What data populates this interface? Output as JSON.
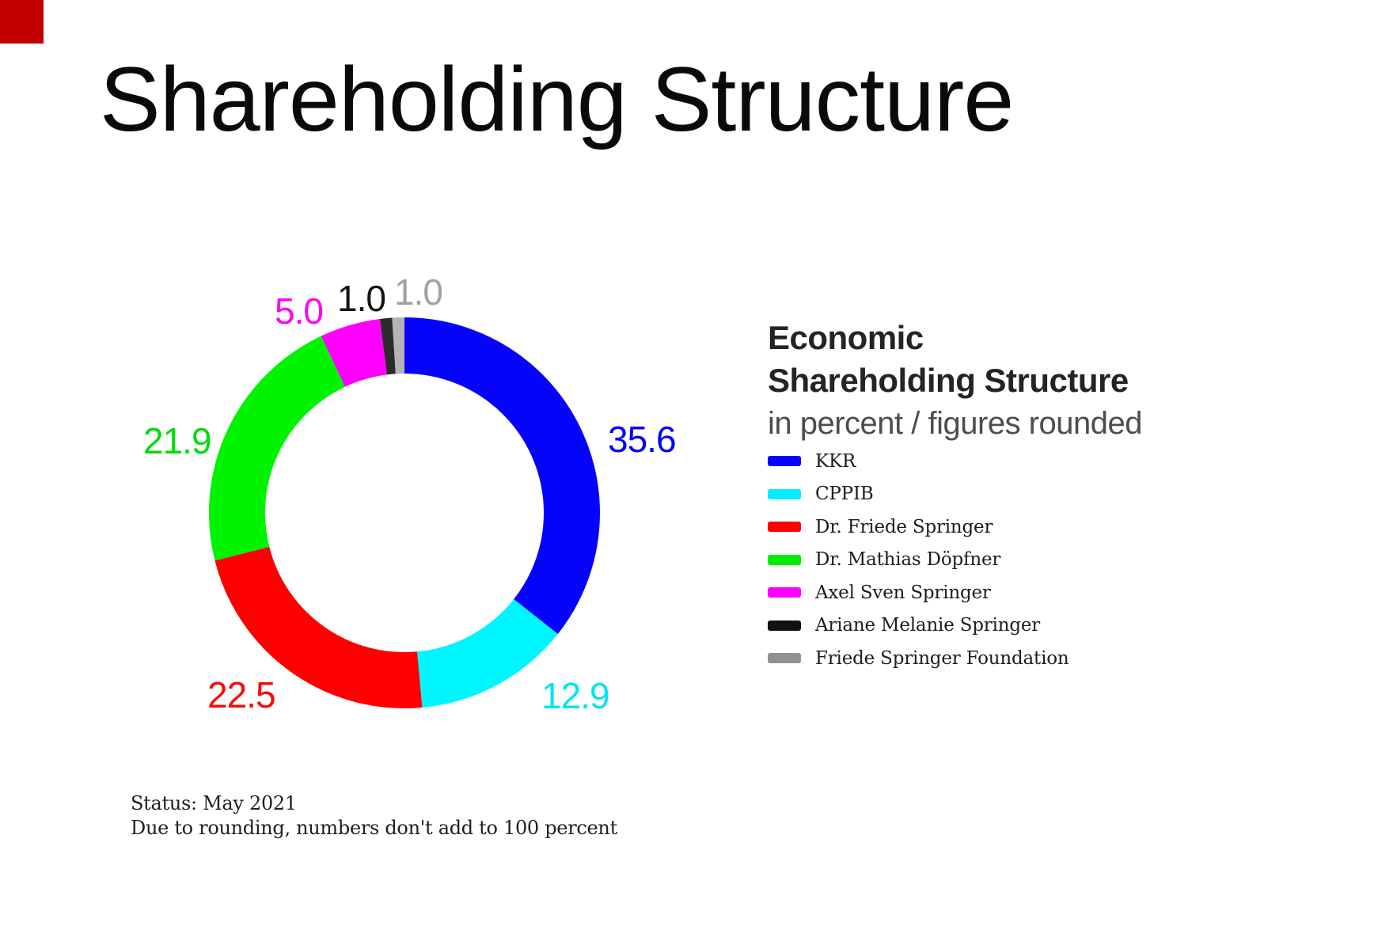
{
  "page": {
    "title": "Shareholding Structure"
  },
  "brand": {
    "corner_square_color": "#c30000"
  },
  "chart_data": {
    "type": "pie",
    "donut": true,
    "title": "Economic Shareholding Structure",
    "subtitle": "in percent / figures rounded",
    "unit": "percent",
    "start_angle_deg": 0,
    "direction": "clockwise",
    "values_total": 99.9,
    "legend_position": "right",
    "series": [
      {
        "name": "KKR",
        "value": 35.6,
        "color": "#0503fa",
        "arc_color": "#0503fa",
        "label_color": "#0503fa"
      },
      {
        "name": "CPPIB",
        "value": 12.9,
        "color": "#00eeff",
        "arc_color": "#00f6ff",
        "label_color": "#00e4f2"
      },
      {
        "name": "Dr. Friede Springer",
        "value": 22.5,
        "color": "#ff0000",
        "arc_color": "#ff0000",
        "label_color": "#f90b0b"
      },
      {
        "name": "Dr. Mathias Döpfner",
        "value": 21.9,
        "color": "#00ee00",
        "arc_color": "#00f400",
        "label_color": "#00dc0c"
      },
      {
        "name": "Axel Sven Springer",
        "value": 5.0,
        "color": "#ff00ff",
        "arc_color": "#ff00ff",
        "label_color": "#fa06fa"
      },
      {
        "name": "Ariane Melanie Springer",
        "value": 1.0,
        "color": "#111111",
        "arc_color": "#2b2b2b",
        "label_color": "#141414"
      },
      {
        "name": "Friede Springer Foundation",
        "value": 1.0,
        "color": "#919191",
        "arc_color": "#b4b4b4",
        "label_color": "#a1a1a1"
      }
    ]
  },
  "legend": {
    "title_line1": "Economic",
    "title_line2": "Shareholding Structure",
    "subtitle": "in percent / figures rounded"
  },
  "footer": {
    "status": "Status: May 2021",
    "note": "Due to rounding, numbers don't add to 100 percent"
  }
}
